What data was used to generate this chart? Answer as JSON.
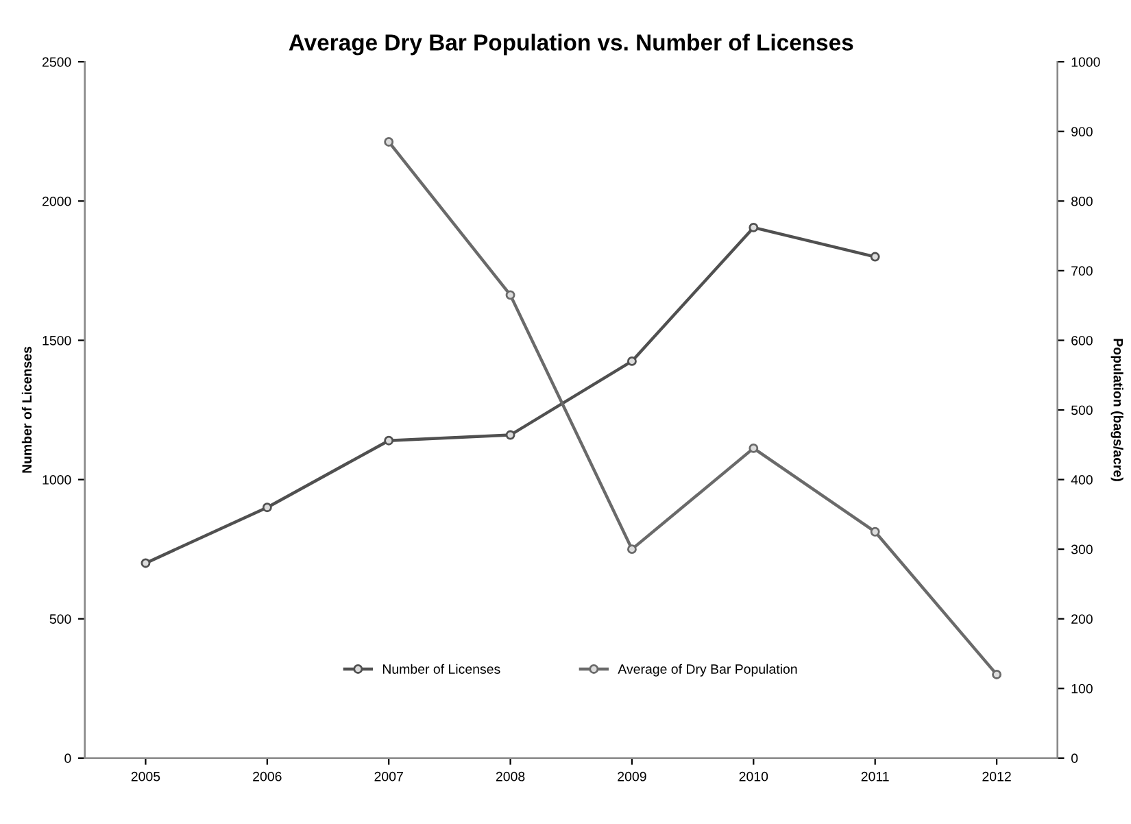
{
  "chart_data": {
    "type": "line",
    "title": "Average Dry Bar Population vs. Number of Licenses",
    "categories": [
      "2005",
      "2006",
      "2007",
      "2008",
      "2009",
      "2010",
      "2011",
      "2012"
    ],
    "ylabel": "Number of Licenses",
    "y2label": "Population (bags/acre)",
    "ylim": [
      0,
      2500
    ],
    "yticks": [
      0,
      500,
      1000,
      1500,
      2000,
      2500
    ],
    "y2lim": [
      0,
      1000
    ],
    "y2ticks": [
      0,
      100,
      200,
      300,
      400,
      500,
      600,
      700,
      800,
      900,
      1000
    ],
    "series": [
      {
        "name": "Number of Licenses",
        "color": "#505050",
        "values": [
          700,
          900,
          1140,
          1160,
          1425,
          1905,
          1800,
          null
        ]
      },
      {
        "name": "Average of Dry Bar Population",
        "color": "#6a6a6a",
        "axis": "y2",
        "values": [
          null,
          null,
          885,
          665,
          300,
          445,
          325,
          120
        ]
      }
    ],
    "marker": "circle",
    "line_style": "solid",
    "grid": false,
    "legend": "bottom"
  }
}
